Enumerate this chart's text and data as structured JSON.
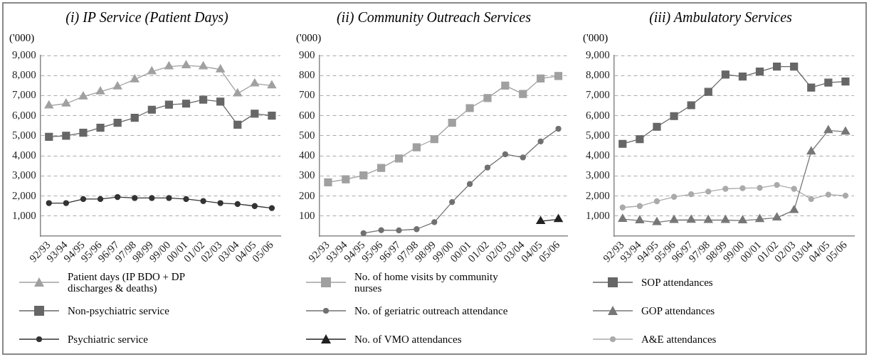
{
  "chart_data": [
    {
      "type": "line",
      "title": "(i) IP Service (Patient Days)",
      "ylabel": "('000)",
      "categories": [
        "92/93",
        "93/94",
        "94/95",
        "95/96",
        "96/97",
        "97/98",
        "98/99",
        "99/00",
        "00/01",
        "01/02",
        "02/03",
        "03/04",
        "04/05",
        "05/06"
      ],
      "series": [
        {
          "name": "Patient days (IP BDO + DP discharges & deaths)",
          "color": "#a0a0a0",
          "marker": "triangle",
          "values": [
            6500,
            6600,
            6950,
            7200,
            7450,
            7800,
            8200,
            8450,
            8500,
            8450,
            8300,
            7100,
            7600,
            7500
          ]
        },
        {
          "name": "Non-psychiatric service",
          "color": "#666666",
          "marker": "square",
          "values": [
            4950,
            5000,
            5150,
            5400,
            5650,
            5900,
            6300,
            6550,
            6600,
            6800,
            6700,
            5550,
            6100,
            6000
          ]
        },
        {
          "name": "Psychiatric service",
          "color": "#333333",
          "marker": "circle",
          "values": [
            1650,
            1650,
            1850,
            1850,
            1950,
            1900,
            1900,
            1900,
            1850,
            1750,
            1650,
            1600,
            1500,
            1400
          ]
        }
      ],
      "ylim": [
        0,
        9000
      ],
      "yticks": [
        {
          "value": 1000,
          "label": "1,000"
        },
        {
          "value": 2000,
          "label": "2,000"
        },
        {
          "value": 3000,
          "label": "3,000"
        },
        {
          "value": 4000,
          "label": "4,000"
        },
        {
          "value": 5000,
          "label": "5,000"
        },
        {
          "value": 6000,
          "label": "6,000"
        },
        {
          "value": 7000,
          "label": "7,000"
        },
        {
          "value": 8000,
          "label": "8,000"
        },
        {
          "value": 9000,
          "label": "9,000"
        }
      ],
      "grid": "y",
      "legend": "bottom"
    },
    {
      "type": "line",
      "title": "(ii) Community Outreach Services",
      "ylabel": "('000)",
      "categories": [
        "92/93",
        "93/94",
        "94/95",
        "95/96",
        "96/97",
        "97/98",
        "98/99",
        "99/00",
        "00/01",
        "01/02",
        "02/03",
        "03/04",
        "04/05",
        "05/06"
      ],
      "series": [
        {
          "name": "No. of home visits by community nurses",
          "color": "#a0a0a0",
          "marker": "square",
          "values": [
            268,
            283,
            303,
            340,
            387,
            443,
            483,
            565,
            638,
            688,
            750,
            708,
            785,
            798
          ]
        },
        {
          "name": "No. of geriatric outreach attendance",
          "color": "#707070",
          "marker": "circle",
          "values": [
            null,
            null,
            15,
            30,
            29,
            35,
            70,
            170,
            260,
            342,
            408,
            392,
            472,
            535
          ]
        },
        {
          "name": "No. of VMO attendances",
          "color": "#222222",
          "marker": "triangle",
          "values": [
            null,
            null,
            null,
            null,
            null,
            null,
            null,
            null,
            null,
            null,
            null,
            null,
            74,
            84
          ]
        }
      ],
      "ylim": [
        0,
        900
      ],
      "yticks": [
        100,
        200,
        300,
        400,
        500,
        600,
        700,
        800,
        900
      ],
      "grid": "y",
      "legend": "bottom"
    },
    {
      "type": "line",
      "title": "(iii) Ambulatory Services",
      "ylabel": "('000)",
      "categories": [
        "92/93",
        "93/94",
        "94/95",
        "95/96",
        "96/97",
        "97/98",
        "98/99",
        "99/00",
        "00/01",
        "01/02",
        "02/03",
        "03/04",
        "04/05",
        "05/06"
      ],
      "series": [
        {
          "name": "SOP attendances",
          "color": "#666666",
          "marker": "square",
          "values": [
            4600,
            4830,
            5450,
            5980,
            6520,
            7190,
            8050,
            7950,
            8200,
            8450,
            8450,
            7400,
            7650,
            7700
          ]
        },
        {
          "name": "GOP attendances",
          "color": "#777777",
          "marker": "triangle",
          "values": [
            850,
            780,
            690,
            800,
            810,
            800,
            800,
            780,
            840,
            920,
            1290,
            4210,
            5270,
            5200
          ]
        },
        {
          "name": "A&E attendances",
          "color": "#aaaaaa",
          "marker": "circle",
          "values": [
            1430,
            1500,
            1740,
            1960,
            2090,
            2220,
            2360,
            2390,
            2410,
            2550,
            2360,
            1850,
            2070,
            2020
          ]
        }
      ],
      "ylim": [
        0,
        9000
      ],
      "yticks": [
        {
          "value": 1000,
          "label": "1,000"
        },
        {
          "value": 2000,
          "label": "2,000"
        },
        {
          "value": 3000,
          "label": "3,000"
        },
        {
          "value": 4000,
          "label": "4,000"
        },
        {
          "value": 5000,
          "label": "5,000"
        },
        {
          "value": 6000,
          "label": "6,000"
        },
        {
          "value": 7000,
          "label": "7,000"
        },
        {
          "value": 8000,
          "label": "8,000"
        },
        {
          "value": 9000,
          "label": "9,000"
        }
      ],
      "grid": "y",
      "legend": "bottom"
    }
  ]
}
